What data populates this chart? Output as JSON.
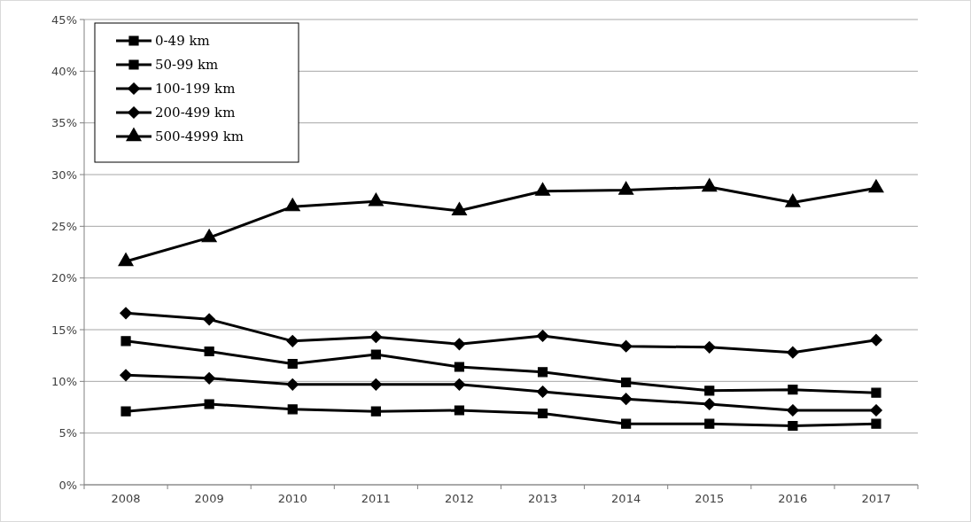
{
  "chart_data": {
    "type": "line",
    "categories": [
      "2008",
      "2009",
      "2010",
      "2011",
      "2012",
      "2013",
      "2014",
      "2015",
      "2016",
      "2017"
    ],
    "series": [
      {
        "name": "0-49 km",
        "color": "#000000",
        "marker": "square",
        "values": [
          13.9,
          12.9,
          11.7,
          12.6,
          11.4,
          10.9,
          9.9,
          9.1,
          9.2,
          8.9
        ]
      },
      {
        "name": "50-99 km",
        "color": "#000000",
        "marker": "square",
        "values": [
          7.1,
          7.8,
          7.3,
          7.1,
          7.2,
          6.9,
          5.9,
          5.9,
          5.7,
          5.9
        ]
      },
      {
        "name": "100-199 km",
        "color": "#000000",
        "marker": "diamond",
        "values": [
          10.6,
          10.3,
          9.7,
          9.7,
          9.7,
          9.0,
          8.3,
          7.8,
          7.2,
          7.2
        ]
      },
      {
        "name": "200-499 km",
        "color": "#000000",
        "marker": "diamond",
        "values": [
          16.6,
          16.0,
          13.9,
          14.3,
          13.6,
          14.4,
          13.4,
          13.3,
          12.8,
          14.0
        ]
      },
      {
        "name": "500-4999 km",
        "color": "#000000",
        "marker": "triangle",
        "values": [
          21.6,
          23.9,
          26.9,
          27.4,
          26.5,
          28.4,
          28.5,
          28.8,
          27.3,
          28.7
        ]
      }
    ],
    "ylim": [
      0,
      45
    ],
    "yticks": [
      {
        "value": 0,
        "label": "0%"
      },
      {
        "value": 5,
        "label": "5%"
      },
      {
        "value": 10,
        "label": "10%"
      },
      {
        "value": 15,
        "label": "15%"
      },
      {
        "value": 20,
        "label": "20%"
      },
      {
        "value": 25,
        "label": "25%"
      },
      {
        "value": 30,
        "label": "30%"
      },
      {
        "value": 35,
        "label": "35%"
      },
      {
        "value": 40,
        "label": "40%"
      },
      {
        "value": 45,
        "label": "45%"
      }
    ],
    "grid": "y",
    "legend": "top left",
    "line_style": "solid"
  }
}
